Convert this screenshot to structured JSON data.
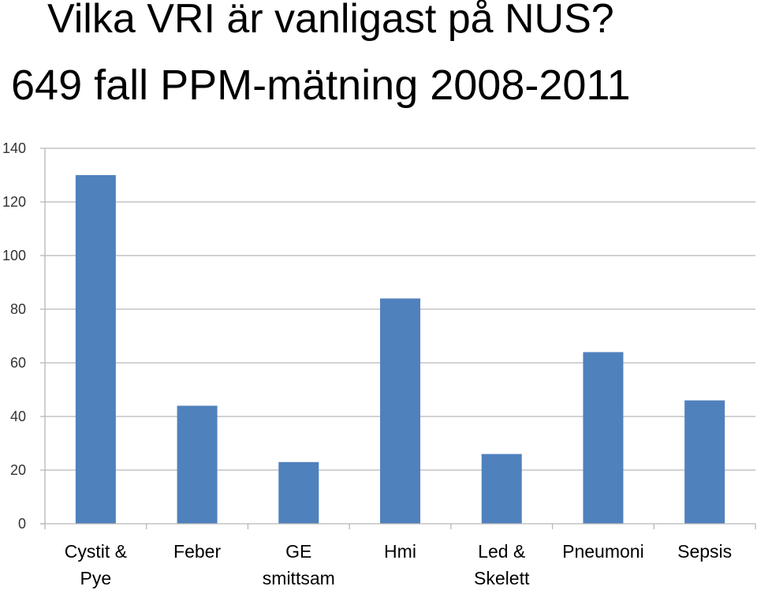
{
  "header": {
    "title": "Vilka VRI är vanligast på NUS?",
    "subtitle": "649 fall PPM-mätning 2008-2011"
  },
  "chart_data": {
    "type": "bar",
    "categories": [
      [
        "Cystit &",
        "Pye"
      ],
      [
        "Feber"
      ],
      [
        "GE",
        "smittsam"
      ],
      [
        "Hmi"
      ],
      [
        "Led &",
        "Skelett"
      ],
      [
        "Pneumoni"
      ],
      [
        "Sepsis"
      ]
    ],
    "values": [
      130,
      44,
      23,
      84,
      26,
      64,
      46
    ],
    "ylim": [
      0,
      140
    ],
    "yticks": [
      0,
      20,
      40,
      60,
      80,
      100,
      120,
      140
    ],
    "grid": true,
    "legend": "none",
    "bar_color": "#4f81bd",
    "grid_color": "#b7b7b7"
  }
}
